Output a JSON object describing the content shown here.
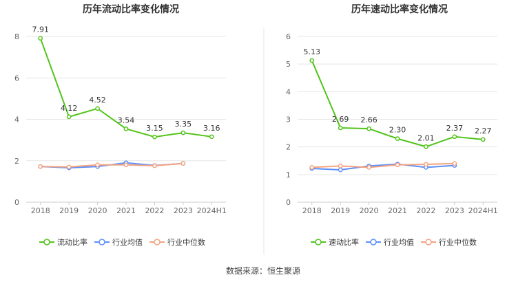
{
  "chart_data": [
    {
      "type": "line",
      "title": "历年流动比率变化情况",
      "categories": [
        "2018",
        "2019",
        "2020",
        "2021",
        "2022",
        "2023",
        "2024H1"
      ],
      "ylim": [
        0,
        8
      ],
      "yticks": [
        0,
        2,
        4,
        6,
        8
      ],
      "grid": true,
      "legend_position": "bottom",
      "series": [
        {
          "name": "流动比率",
          "color": "#52c41a",
          "values": [
            7.91,
            4.12,
            4.52,
            3.54,
            3.15,
            3.35,
            3.16
          ],
          "labels": [
            "7.91",
            "4.12",
            "4.52",
            "3.54",
            "3.15",
            "3.35",
            "3.16"
          ]
        },
        {
          "name": "行业均值",
          "color": "#5b8ff9",
          "values": [
            1.72,
            1.66,
            1.72,
            1.9,
            1.77,
            1.87,
            null
          ]
        },
        {
          "name": "行业中位数",
          "color": "#f4a37f",
          "values": [
            1.72,
            1.7,
            1.8,
            1.8,
            1.76,
            1.87,
            null
          ]
        }
      ]
    },
    {
      "type": "line",
      "title": "历年速动比率变化情况",
      "categories": [
        "2018",
        "2019",
        "2020",
        "2021",
        "2022",
        "2023",
        "2024H1"
      ],
      "ylim": [
        0,
        6
      ],
      "yticks": [
        0,
        1,
        2,
        3,
        4,
        5,
        6
      ],
      "grid": true,
      "legend_position": "bottom",
      "series": [
        {
          "name": "速动比率",
          "color": "#52c41a",
          "values": [
            5.13,
            2.69,
            2.66,
            2.3,
            2.01,
            2.37,
            2.27
          ],
          "labels": [
            "5.13",
            "2.69",
            "2.66",
            "2.30",
            "2.01",
            "2.37",
            "2.27"
          ]
        },
        {
          "name": "行业均值",
          "color": "#5b8ff9",
          "values": [
            1.22,
            1.17,
            1.31,
            1.38,
            1.26,
            1.33,
            null
          ]
        },
        {
          "name": "行业中位数",
          "color": "#f4a37f",
          "values": [
            1.26,
            1.31,
            1.26,
            1.35,
            1.37,
            1.4,
            null
          ]
        }
      ]
    }
  ],
  "footer": {
    "source": "数据来源：恒生聚源"
  }
}
